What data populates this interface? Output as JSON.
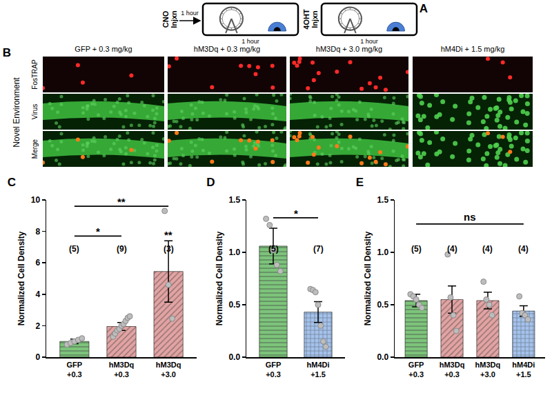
{
  "diagram": {
    "label": "A",
    "first_injection": "CNO Injxn",
    "delay": "1 hour",
    "first_session": "1 hour",
    "second_injection": "4OHT Injxn",
    "second_session": "1 hour"
  },
  "micrographs": {
    "label": "B",
    "row_group": "Novel Environment",
    "rows": [
      "FosTRAP",
      "Virus",
      "Merge"
    ],
    "columns": [
      "GFP + 0.3 mg/kg",
      "hM3Dq + 0.3 mg/kg",
      "hM3Dq + 3.0 mg/kg",
      "hM4Di + 1.5 mg/kg"
    ]
  },
  "chart_data": [
    {
      "type": "bar",
      "title": "C",
      "y_label": "Normalized Cell Density",
      "categories": [
        "GFP +0.3",
        "hM3Dq +0.3",
        "hM3Dq +3.0"
      ],
      "values": [
        1.0,
        1.95,
        5.45
      ],
      "errors": [
        0.15,
        0.25,
        1.95
      ],
      "points": [
        [
          0.8,
          0.9,
          1.0,
          1.1,
          1.2
        ],
        [
          1.3,
          1.5,
          1.7,
          1.8,
          2.0,
          2.1,
          2.3,
          2.5,
          2.6
        ],
        [
          9.3,
          4.6,
          2.45
        ]
      ],
      "n_labels": [
        "(5)",
        "(9)",
        "(3)"
      ],
      "colors": [
        "#7cc47a",
        "#e3a3a3",
        "#e3a3a3"
      ],
      "significance": [
        {
          "from": 0,
          "to": 2,
          "y": 9.6,
          "text": "**"
        },
        {
          "from": 0,
          "to": 1,
          "y": 7.7,
          "text": "*"
        },
        {
          "from": 2,
          "to": 2,
          "y": 7.5,
          "text": "**"
        }
      ],
      "ylim": [
        0,
        10
      ],
      "yticks": [
        0,
        2,
        4,
        6,
        8,
        10
      ],
      "grid": false
    },
    {
      "type": "bar",
      "title": "D",
      "y_label": "Normalized Cell Density",
      "categories": [
        "GFP +0.3",
        "hM4Di +1.5"
      ],
      "values": [
        1.06,
        0.43
      ],
      "errors": [
        0.17,
        0.1
      ],
      "points": [
        [
          1.32,
          1.26,
          1.02,
          0.88,
          0.82
        ],
        [
          0.65,
          0.64,
          0.62,
          0.5,
          0.3,
          0.15,
          0.1
        ]
      ],
      "n_labels": [
        "(5)",
        "(7)"
      ],
      "colors": [
        "#7cc47a",
        "#a4c2ec"
      ],
      "significance": [
        {
          "from": 0,
          "to": 1,
          "y": 1.33,
          "text": "*"
        }
      ],
      "ylim": [
        0,
        1.5
      ],
      "yticks": [
        {
          "value": 0,
          "label": "0.0"
        },
        0.5,
        {
          "value": 1,
          "label": "1.0"
        },
        1.5
      ],
      "grid": false
    },
    {
      "type": "bar",
      "title": "E",
      "y_label": "Normalized Cell Density",
      "categories": [
        "GFP +0.3",
        "hM3Dq +0.3",
        "hM3Dq +3.0",
        "hM4Di +1.5"
      ],
      "values": [
        0.54,
        0.55,
        0.54,
        0.44
      ],
      "errors": [
        0.06,
        0.13,
        0.08,
        0.05
      ],
      "points": [
        [
          0.6,
          0.58,
          0.55,
          0.5,
          0.47
        ],
        [
          0.98,
          0.57,
          0.4,
          0.25
        ],
        [
          0.72,
          0.55,
          0.5,
          0.4
        ],
        [
          0.58,
          0.42,
          0.4,
          0.36
        ]
      ],
      "n_labels": [
        "(5)",
        "(4)",
        "(4)",
        "(4)"
      ],
      "colors": [
        "#7cc47a",
        "#e3a3a3",
        "#e3a3a3",
        "#a4c2ec"
      ],
      "significance": [
        {
          "from": 0,
          "to": 3,
          "y": 1.27,
          "text": "ns"
        }
      ],
      "ylim": [
        0,
        1.5
      ],
      "yticks": [
        {
          "value": 0,
          "label": "0.0"
        },
        0.5,
        {
          "value": 1,
          "label": "1.0"
        },
        1.5
      ],
      "grid": false
    }
  ]
}
